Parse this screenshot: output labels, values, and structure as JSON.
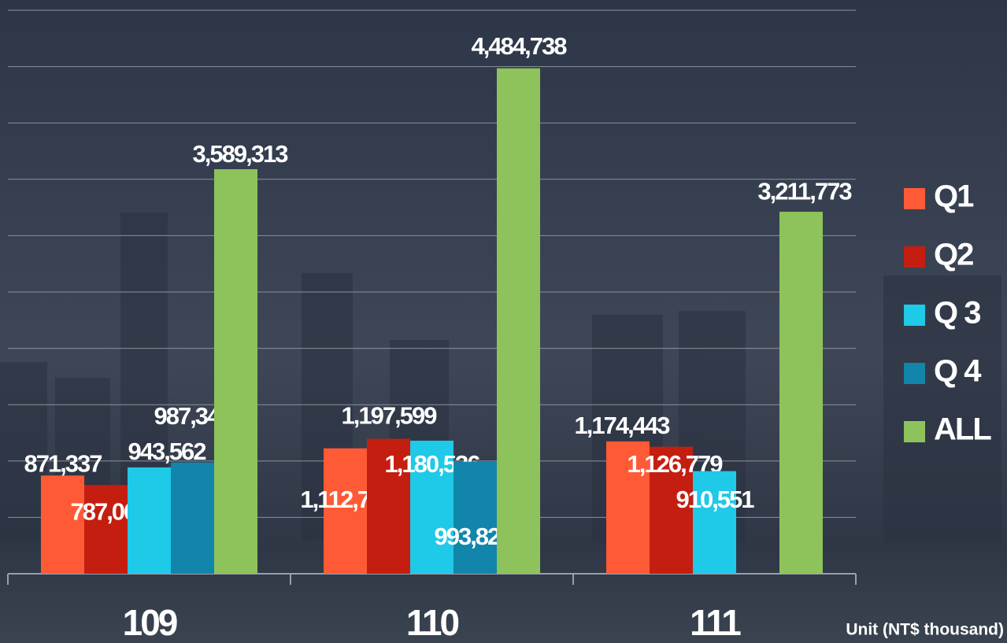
{
  "chart_data": {
    "type": "bar",
    "categories": [
      "109",
      "110",
      "111"
    ],
    "series": [
      {
        "name": "Q1",
        "color": "#ff5a36",
        "values": [
          871337,
          1112782,
          1174443
        ],
        "value_labels": [
          "871,337",
          "1,112,782",
          "1,174,443"
        ]
      },
      {
        "name": "Q2",
        "color": "#c41e10",
        "values": [
          787067,
          1197599,
          1126779
        ],
        "value_labels": [
          "787,067",
          "1,197,599",
          "1,126,779"
        ]
      },
      {
        "name": "Q 3",
        "color": "#1fc9e8",
        "values": [
          943562,
          1180536,
          910551
        ],
        "value_labels": [
          "943,562",
          "1,180,536",
          "910,551"
        ]
      },
      {
        "name": "Q 4",
        "color": "#1285aa",
        "values": [
          987347,
          993821,
          null
        ],
        "value_labels": [
          "987,347",
          "993,821",
          null
        ]
      },
      {
        "name": "ALL",
        "color": "#8dc35a",
        "values": [
          3589313,
          4484738,
          3211773
        ],
        "value_labels": [
          "3,589,313",
          "4,484,738",
          "3,211,773"
        ]
      }
    ],
    "ylim": [
      0,
      5000000
    ],
    "yticks": [
      0,
      500000,
      1000000,
      1500000,
      2000000,
      2500000,
      3000000,
      3500000,
      4000000,
      4500000,
      5000000
    ],
    "grid": true,
    "legend": "right",
    "unit_note": "Unit (NT$ thousand)"
  }
}
